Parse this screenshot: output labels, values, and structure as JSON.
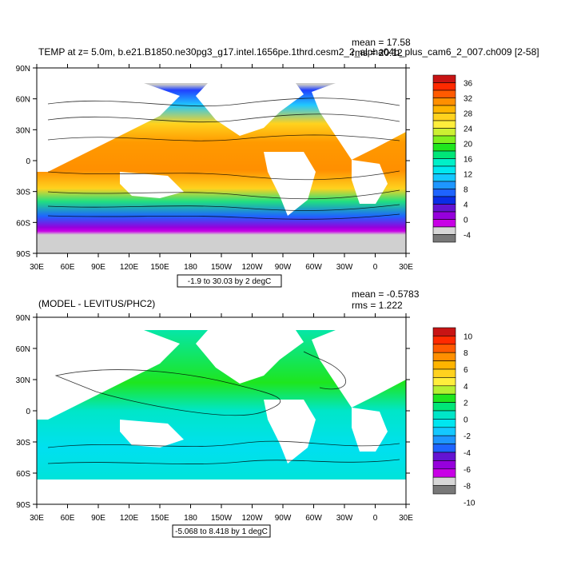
{
  "chart_data": [
    {
      "type": "heatmap",
      "title": "TEMP at z=   5.0m, b.e21.B1850.ne30pg3_g17.intel.1656pe.1thrd.cesm2_2_alpha04b_plus_cam6_2_007.ch009 [2-58]",
      "stats": {
        "mean": "mean = 17.58",
        "rms": "rms = 20.12"
      },
      "range_label": "-1.9 to 30.03 by 2 degC",
      "x_ticks": [
        "30E",
        "60E",
        "90E",
        "120E",
        "150E",
        "180",
        "150W",
        "120W",
        "90W",
        "60W",
        "30W",
        "0",
        "30E"
      ],
      "y_ticks": [
        "90N",
        "60N",
        "30N",
        "0",
        "30S",
        "60S",
        "90S"
      ],
      "xlim": [
        30,
        390
      ],
      "ylim": [
        -90,
        90
      ],
      "colorbar": {
        "labels": [
          "36",
          "32",
          "28",
          "24",
          "20",
          "16",
          "12",
          "8",
          "4",
          "0",
          "-4"
        ],
        "colors": [
          "#c81414",
          "#ff2a00",
          "#ff5a00",
          "#ff8f00",
          "#ffb400",
          "#ffd21e",
          "#ffee3c",
          "#cdf032",
          "#7ff01e",
          "#1ee61e",
          "#00e678",
          "#00f0c8",
          "#00e8f0",
          "#14c8ff",
          "#1e96ff",
          "#1e64ff",
          "#0a2de6",
          "#6414d2",
          "#9600dc",
          "#c800e6",
          "#d7d7d7",
          "#787878"
        ]
      }
    },
    {
      "type": "heatmap",
      "title": "(MODEL - LEVITUS/PHC2)",
      "stats": {
        "mean": "mean = -0.5783",
        "rms": "rms = 1.222"
      },
      "range_label": "-5.068 to 8.418 by 1 degC",
      "x_ticks": [
        "30E",
        "60E",
        "90E",
        "120E",
        "150E",
        "180",
        "150W",
        "120W",
        "90W",
        "60W",
        "30W",
        "0",
        "30E"
      ],
      "y_ticks": [
        "90N",
        "60N",
        "30N",
        "0",
        "30S",
        "60S",
        "90S"
      ],
      "xlim": [
        30,
        390
      ],
      "ylim": [
        -90,
        90
      ],
      "colorbar": {
        "labels": [
          "10",
          "8",
          "6",
          "4",
          "2",
          "0",
          "-2",
          "-4",
          "-6",
          "-8",
          "-10"
        ],
        "colors": [
          "#c81414",
          "#ff2a00",
          "#ff5a00",
          "#ff8f00",
          "#ffb400",
          "#ffd21e",
          "#ffee3c",
          "#b4f032",
          "#1ee61e",
          "#00e678",
          "#00e6c8",
          "#00e6f0",
          "#14c8ff",
          "#1e96ff",
          "#1e64ff",
          "#6414d2",
          "#9600dc",
          "#c800e6",
          "#d7d7d7",
          "#787878"
        ]
      }
    }
  ]
}
